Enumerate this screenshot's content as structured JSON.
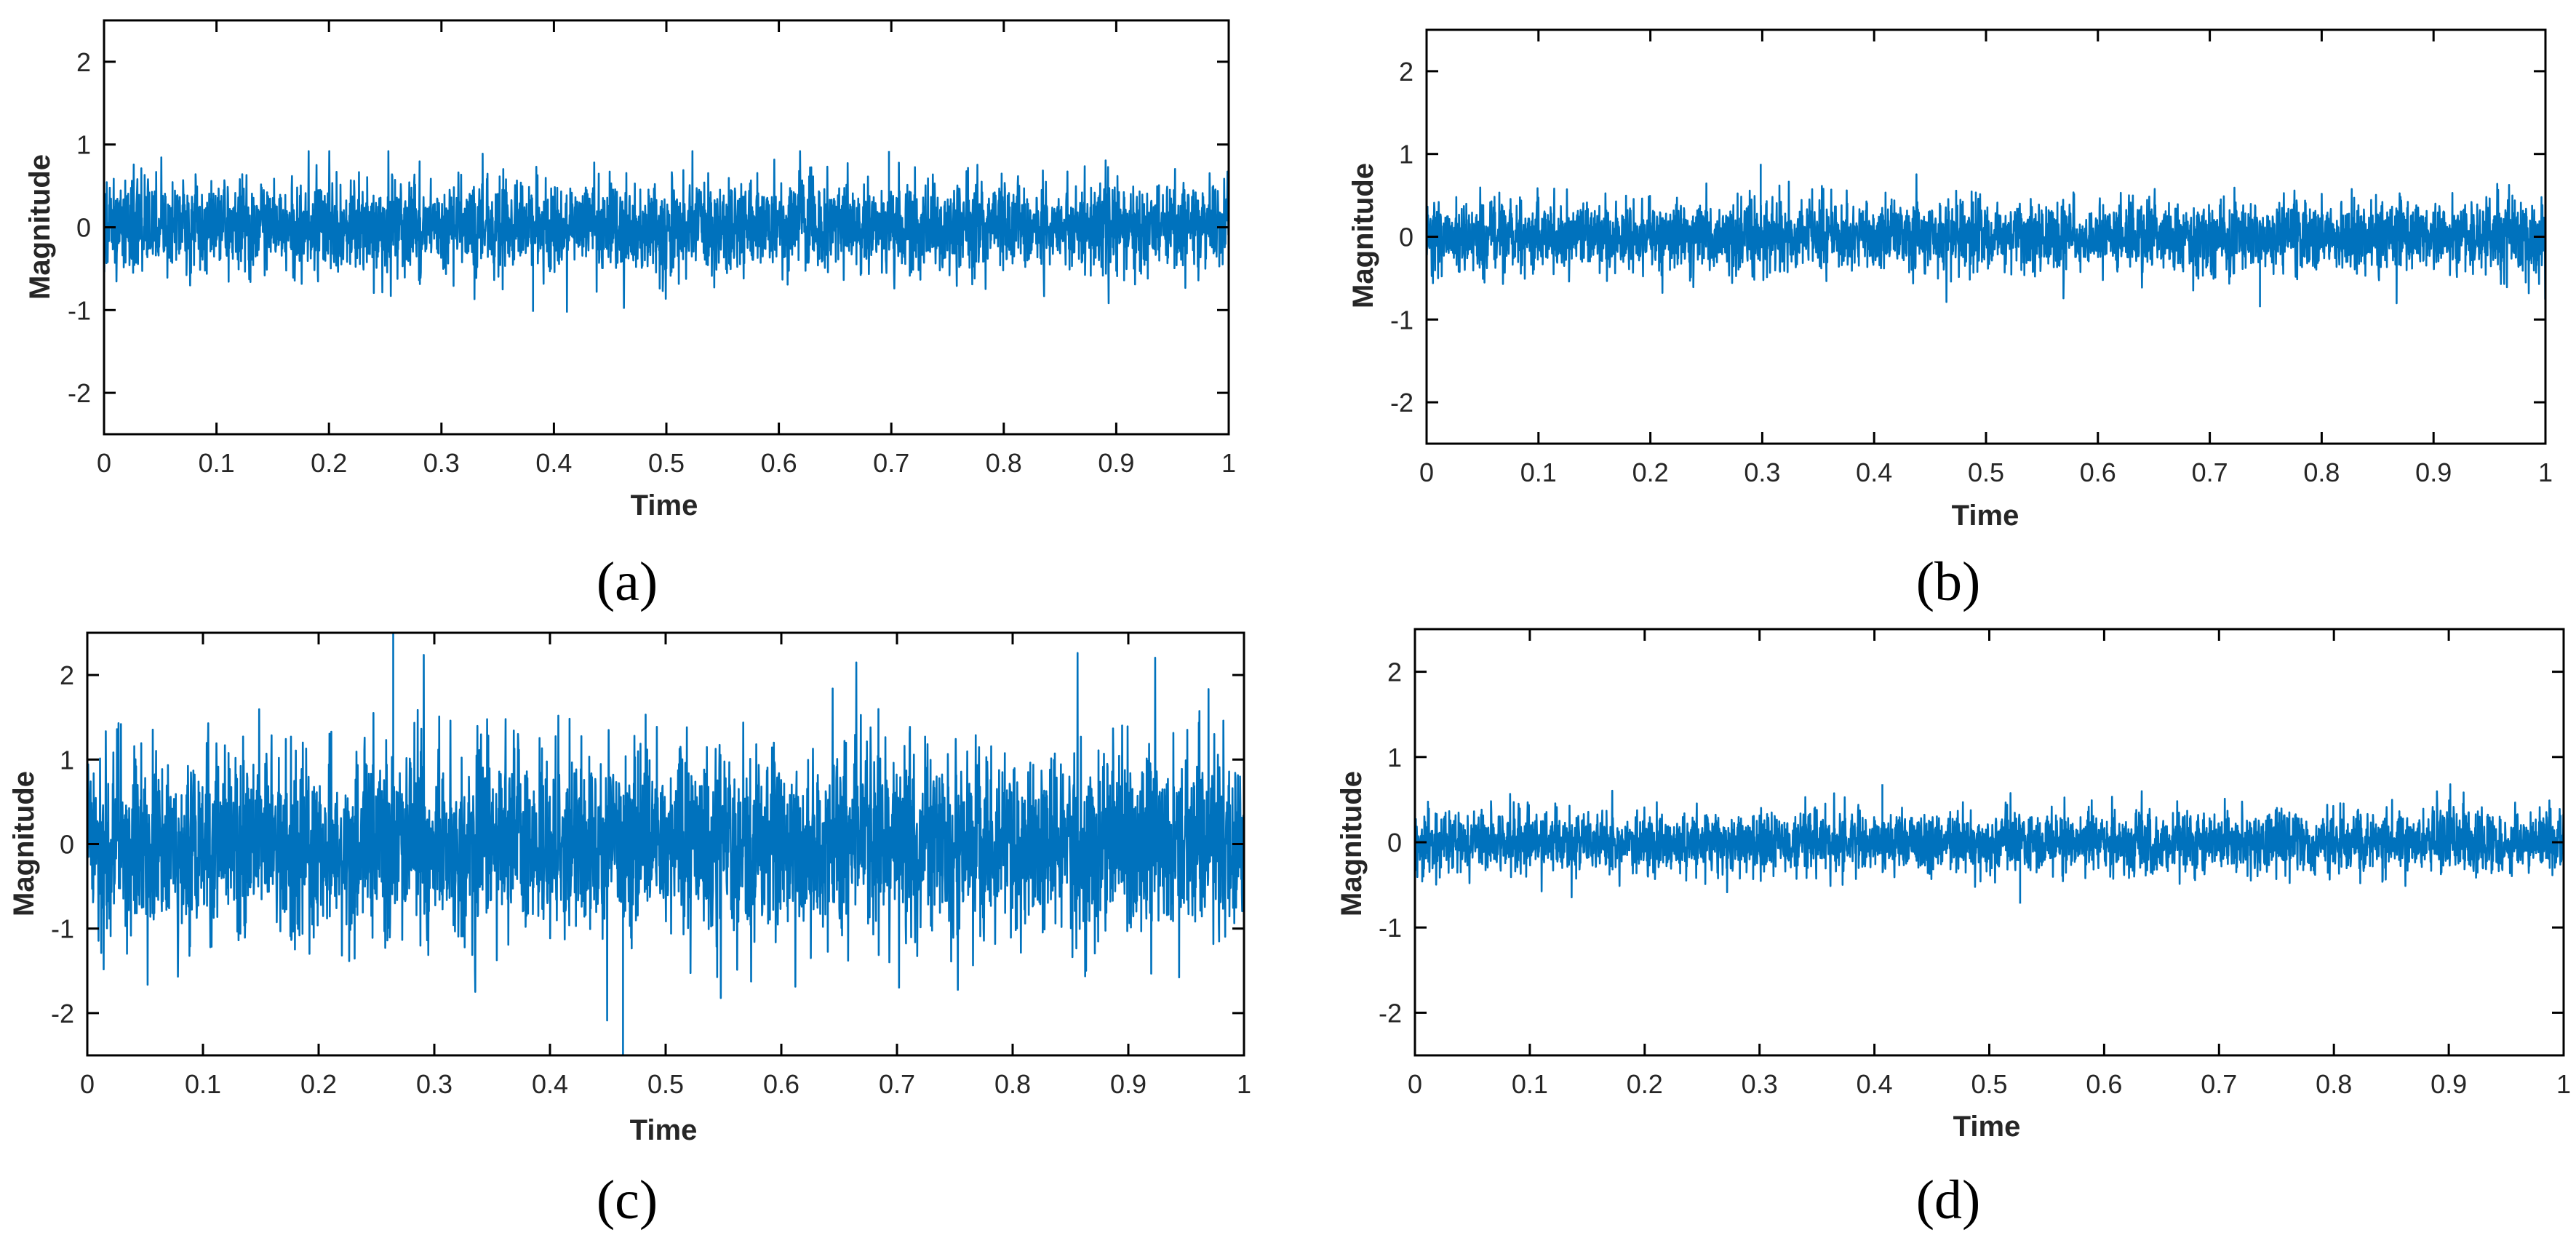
{
  "chart_data": [
    {
      "type": "line",
      "panel_label": "(a)",
      "xlabel": "Time",
      "ylabel": "Magnitude",
      "xlim": [
        0,
        1
      ],
      "ylim": [
        -2.5,
        2.5
      ],
      "xticks": [
        "0",
        "0.1",
        "0.2",
        "0.3",
        "0.4",
        "0.5",
        "0.6",
        "0.7",
        "0.8",
        "0.9",
        "1"
      ],
      "yticks": [
        "-2",
        "-1",
        "0",
        "1",
        "2"
      ],
      "grid": false,
      "color": "#0072BD",
      "signal": {
        "kind": "vibration noise",
        "mean": 0,
        "typical_peak": 0.7,
        "max": 0.92,
        "min": -1.02
      },
      "series": [
        {
          "name": "",
          "color": "#0072BD"
        }
      ]
    },
    {
      "type": "line",
      "panel_label": "(b)",
      "xlabel": "Time",
      "ylabel": "Magnitude",
      "xlim": [
        0,
        1
      ],
      "ylim": [
        -2.5,
        2.5
      ],
      "xticks": [
        "0",
        "0.1",
        "0.2",
        "0.3",
        "0.4",
        "0.5",
        "0.6",
        "0.7",
        "0.8",
        "0.9",
        "1"
      ],
      "yticks": [
        "-2",
        "-1",
        "0",
        "1",
        "2"
      ],
      "grid": false,
      "color": "#0072BD",
      "signal": {
        "kind": "vibration noise",
        "mean": 0,
        "typical_peak": 0.55,
        "max": 0.88,
        "min": -0.85
      },
      "series": [
        {
          "name": "",
          "color": "#0072BD"
        }
      ]
    },
    {
      "type": "line",
      "panel_label": "(c)",
      "xlabel": "Time",
      "ylabel": "Magnitude",
      "xlim": [
        0,
        1
      ],
      "ylim": [
        -2.5,
        2.5
      ],
      "xticks": [
        "0",
        "0.1",
        "0.2",
        "0.3",
        "0.4",
        "0.5",
        "0.6",
        "0.7",
        "0.8",
        "0.9",
        "1"
      ],
      "yticks": [
        "-2",
        "-1",
        "0",
        "1",
        "2"
      ],
      "grid": false,
      "color": "#0072BD",
      "signal": {
        "kind": "vibration noise",
        "mean": 0,
        "typical_peak": 1.4,
        "max": 2.5,
        "min": -2.5
      },
      "series": [
        {
          "name": "",
          "color": "#0072BD"
        }
      ]
    },
    {
      "type": "line",
      "panel_label": "(d)",
      "xlabel": "Time",
      "ylabel": "Magnitude",
      "xlim": [
        0,
        1
      ],
      "ylim": [
        -2.5,
        2.5
      ],
      "xticks": [
        "0",
        "0.1",
        "0.2",
        "0.3",
        "0.4",
        "0.5",
        "0.6",
        "0.7",
        "0.8",
        "0.9",
        "1"
      ],
      "yticks": [
        "-2",
        "-1",
        "0",
        "1",
        "2"
      ],
      "grid": false,
      "color": "#0072BD",
      "signal": {
        "kind": "vibration noise",
        "mean": 0,
        "typical_peak": 0.45,
        "max": 0.68,
        "min": -0.72
      },
      "series": [
        {
          "name": "",
          "color": "#0072BD"
        }
      ]
    }
  ]
}
